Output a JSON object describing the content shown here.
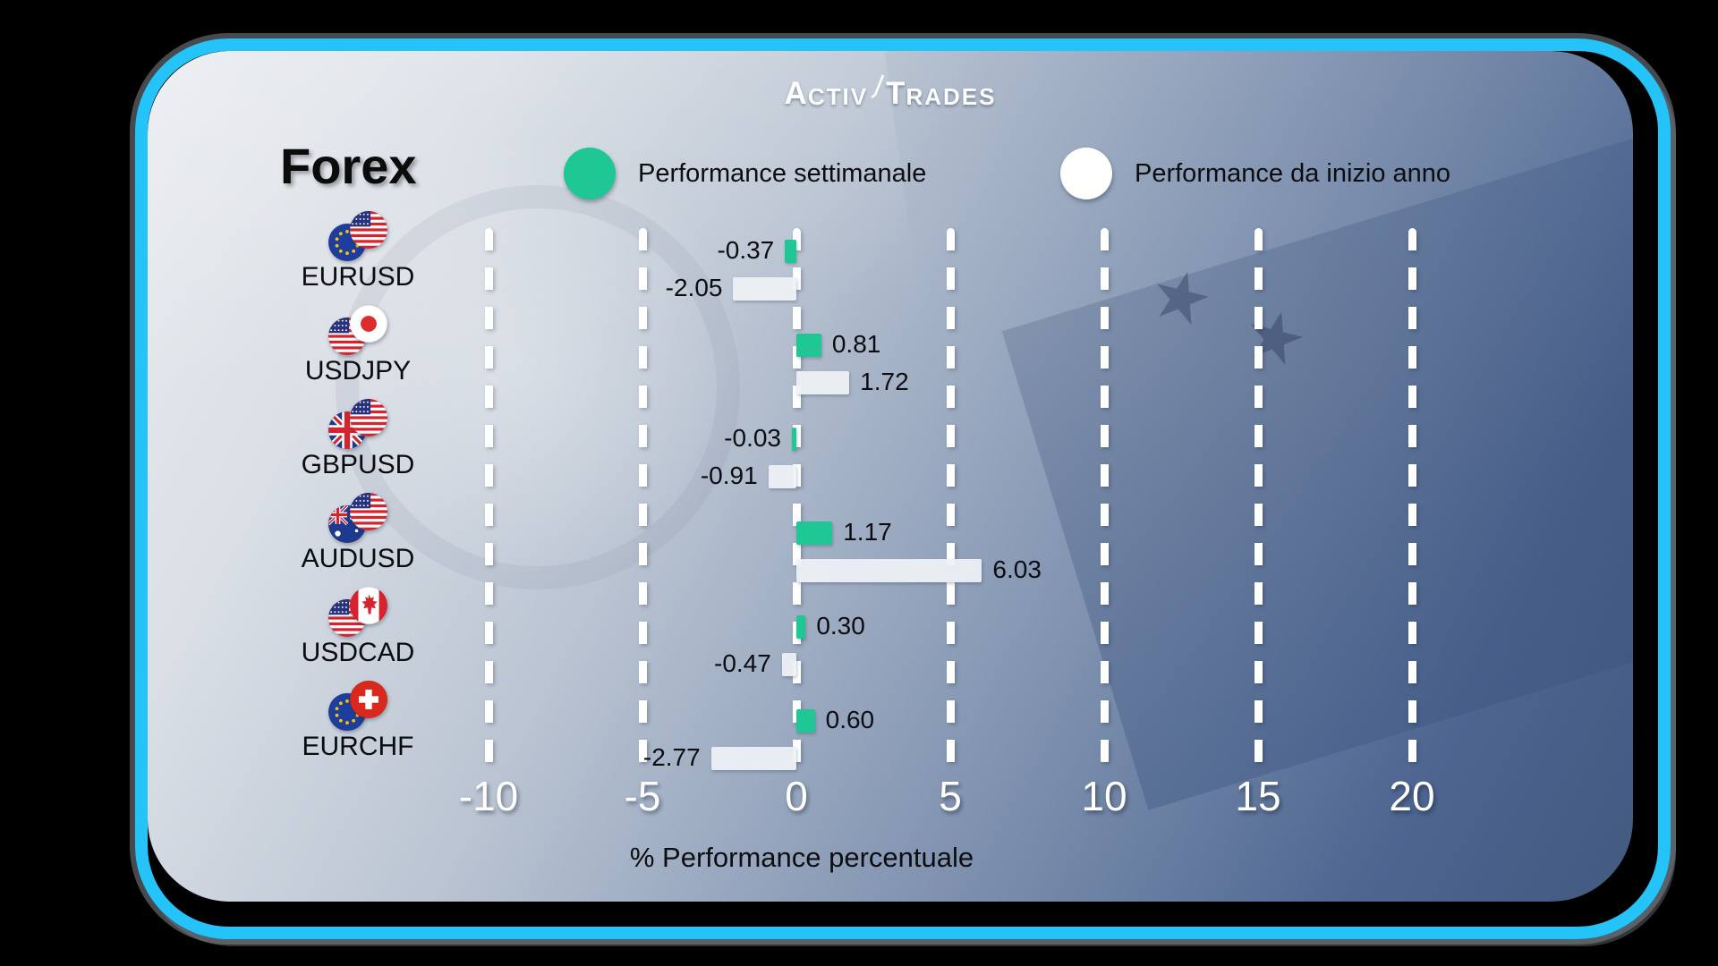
{
  "logo": {
    "part1": "A",
    "part1b": "CTIV",
    "part2": "T",
    "part2b": "RADES"
  },
  "title": "Forex",
  "legend": [
    {
      "label": "Performance settimanale",
      "color": "#1fc795"
    },
    {
      "label": "Performance da inizio anno",
      "color": "#ffffff"
    }
  ],
  "chart_data": {
    "type": "bar",
    "orientation": "horizontal",
    "title": "Forex",
    "categories": [
      "EURUSD",
      "USDJPY",
      "GBPUSD",
      "AUDUSD",
      "USDCAD",
      "EURCHF"
    ],
    "flags": [
      [
        "eu",
        "us"
      ],
      [
        "us",
        "jp"
      ],
      [
        "gb",
        "us"
      ],
      [
        "au",
        "us"
      ],
      [
        "us",
        "ca"
      ],
      [
        "eu",
        "ch"
      ]
    ],
    "series": [
      {
        "name": "Performance settimanale",
        "color": "#1fc795",
        "values": [
          -0.37,
          0.81,
          -0.03,
          1.17,
          0.3,
          0.6
        ],
        "labels": [
          "-0.37",
          "0.81",
          "-0.03",
          "1.17",
          "0.30",
          "0.60"
        ]
      },
      {
        "name": "Performance da inizio anno",
        "color": "#eef1f5",
        "values": [
          -2.05,
          1.72,
          -0.91,
          6.03,
          -0.47,
          -2.77
        ],
        "labels": [
          "-2.05",
          "1.72",
          "-0.91",
          "6.03",
          "-0.47",
          "-2.77"
        ]
      }
    ],
    "xlabel": "% Performance percentuale",
    "x_ticks": [
      -10,
      -5,
      0,
      5,
      10,
      15,
      20
    ],
    "xlim": [
      -21,
      27
    ],
    "grid": "dashed-vertical-white",
    "legend_position": "top"
  },
  "colors": {
    "accent_border": "#24c4fa",
    "bar_week": "#1fc795",
    "bar_ytd": "#eef1f5",
    "tick_text": "#ffffff",
    "label_text": "#0b0c0f"
  }
}
